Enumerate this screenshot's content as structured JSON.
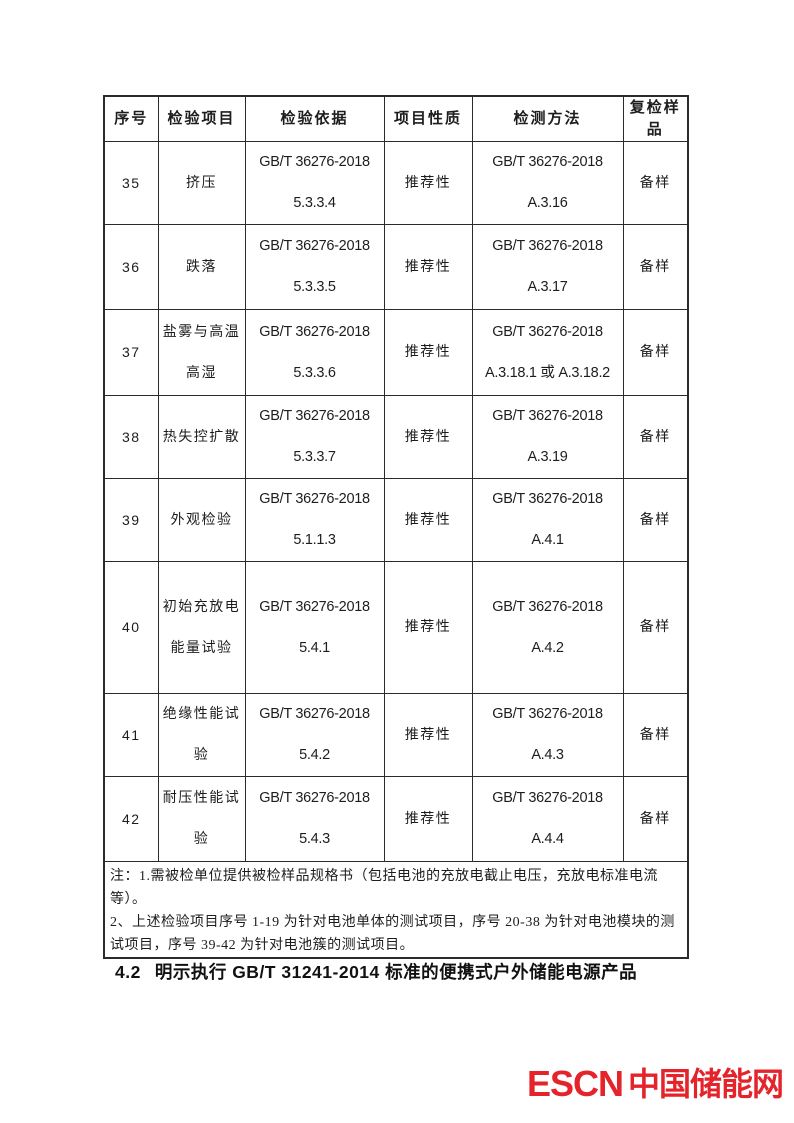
{
  "table": {
    "headers": [
      "序号",
      "检验项目",
      "检验依据",
      "项目性质",
      "检测方法",
      "复检样品"
    ],
    "rows": [
      {
        "no": "35",
        "item": "挤压",
        "basis_std": "GB/T 36276-2018",
        "basis_clause": "5.3.3.4",
        "nature": "推荐性",
        "method_std": "GB/T 36276-2018",
        "method_clause": "A.3.16",
        "sample": "备样"
      },
      {
        "no": "36",
        "item": "跌落",
        "basis_std": "GB/T 36276-2018",
        "basis_clause": "5.3.3.5",
        "nature": "推荐性",
        "method_std": "GB/T 36276-2018",
        "method_clause": "A.3.17",
        "sample": "备样"
      },
      {
        "no": "37",
        "item": "盐雾与高温高湿",
        "basis_std": "GB/T 36276-2018",
        "basis_clause": "5.3.3.6",
        "nature": "推荐性",
        "method_std": "GB/T 36276-2018",
        "method_clause": "A.3.18.1 或 A.3.18.2",
        "sample": "备样"
      },
      {
        "no": "38",
        "item": "热失控扩散",
        "basis_std": "GB/T 36276-2018",
        "basis_clause": "5.3.3.7",
        "nature": "推荐性",
        "method_std": "GB/T 36276-2018",
        "method_clause": "A.3.19",
        "sample": "备样"
      },
      {
        "no": "39",
        "item": "外观检验",
        "basis_std": "GB/T 36276-2018",
        "basis_clause": "5.1.1.3",
        "nature": "推荐性",
        "method_std": "GB/T 36276-2018",
        "method_clause": "A.4.1",
        "sample": "备样"
      },
      {
        "no": "40",
        "item": "初始充放电能量试验",
        "basis_std": "GB/T 36276-2018",
        "basis_clause": "5.4.1",
        "nature": "推荐性",
        "method_std": "GB/T 36276-2018",
        "method_clause": "A.4.2",
        "sample": "备样"
      },
      {
        "no": "41",
        "item": "绝缘性能试验",
        "basis_std": "GB/T 36276-2018",
        "basis_clause": "5.4.2",
        "nature": "推荐性",
        "method_std": "GB/T 36276-2018",
        "method_clause": "A.4.3",
        "sample": "备样"
      },
      {
        "no": "42",
        "item": "耐压性能试验",
        "basis_std": "GB/T 36276-2018",
        "basis_clause": "5.4.3",
        "nature": "推荐性",
        "method_std": "GB/T 36276-2018",
        "method_clause": "A.4.4",
        "sample": "备样"
      }
    ],
    "notes": [
      "注：1.需被检单位提供被检样品规格书（包括电池的充放电截止电压，充放电标准电流等）。",
      "2、上述检验项目序号 1-19 为针对电池单体的测试项目，序号 20-38 为针对电池模块的测试项目，序号 39-42 为针对电池簇的测试项目。"
    ]
  },
  "heading": {
    "number": "4.2",
    "text": "明示执行 GB/T 31241-2014 标准的便携式户外储能电源产品"
  },
  "footer": {
    "logo_en": "ESCN",
    "logo_cn": "中国储能网",
    "logo_color": "#e4232b"
  }
}
